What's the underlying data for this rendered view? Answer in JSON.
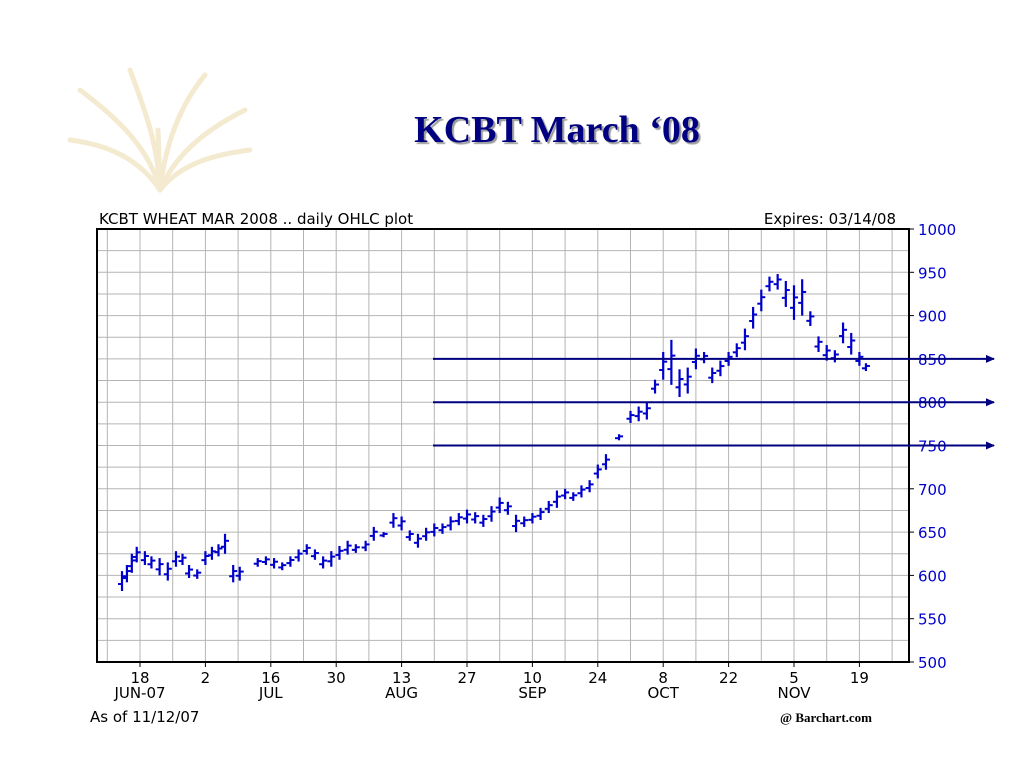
{
  "slide": {
    "title": "KCBT March ‘08"
  },
  "chart_header": {
    "left": "KCBT WHEAT MAR 2008 .. daily OHLC plot",
    "right": "Expires: 03/14/08"
  },
  "footer": {
    "as_of": "As of 11/12/07",
    "credit": "@ Barchart.com"
  },
  "colors": {
    "bars": "#0000cc",
    "lines": "#000080",
    "title": "#000080",
    "grid": "#b4b4b4"
  },
  "chart_data": {
    "type": "ohlc",
    "title": "KCBT WHEAT MAR 2008 .. daily OHLC plot",
    "ylim": [
      500,
      1000
    ],
    "y_ticks": [
      1000,
      950,
      900,
      850,
      800,
      750,
      700,
      650,
      600,
      550,
      500
    ],
    "x_ticks": [
      {
        "day": "18",
        "month": "JUN-07"
      },
      {
        "day": "2",
        "month": ""
      },
      {
        "day": "16",
        "month": "JUL"
      },
      {
        "day": "30",
        "month": ""
      },
      {
        "day": "13",
        "month": "AUG"
      },
      {
        "day": "27",
        "month": ""
      },
      {
        "day": "10",
        "month": "SEP"
      },
      {
        "day": "24",
        "month": ""
      },
      {
        "day": "8",
        "month": "OCT"
      },
      {
        "day": "22",
        "month": ""
      },
      {
        "day": "5",
        "month": "NOV"
      },
      {
        "day": "19",
        "month": ""
      }
    ],
    "x_index": "weeks from 2007-06-18 (tick every 2 weeks)",
    "x_range": [
      -0.7,
      22.2
    ],
    "bars": [
      {
        "x": -0.55,
        "h": 605,
        "l": 582
      },
      {
        "x": -0.4,
        "h": 612,
        "l": 592
      },
      {
        "x": -0.25,
        "h": 625,
        "l": 603
      },
      {
        "x": -0.1,
        "h": 633,
        "l": 615
      },
      {
        "x": 0.15,
        "h": 628,
        "l": 612
      },
      {
        "x": 0.35,
        "h": 622,
        "l": 608
      },
      {
        "x": 0.6,
        "h": 620,
        "l": 600
      },
      {
        "x": 0.85,
        "h": 615,
        "l": 594
      },
      {
        "x": 1.1,
        "h": 628,
        "l": 610
      },
      {
        "x": 1.3,
        "h": 625,
        "l": 612
      },
      {
        "x": 1.5,
        "h": 612,
        "l": 597
      },
      {
        "x": 1.75,
        "h": 607,
        "l": 596
      },
      {
        "x": 2.0,
        "h": 628,
        "l": 612
      },
      {
        "x": 2.2,
        "h": 633,
        "l": 618
      },
      {
        "x": 2.4,
        "h": 636,
        "l": 622
      },
      {
        "x": 2.6,
        "h": 648,
        "l": 625
      },
      {
        "x": 2.85,
        "h": 612,
        "l": 592
      },
      {
        "x": 3.05,
        "h": 610,
        "l": 594
      },
      {
        "x": 3.6,
        "h": 620,
        "l": 610
      },
      {
        "x": 3.85,
        "h": 622,
        "l": 612
      },
      {
        "x": 4.1,
        "h": 620,
        "l": 608
      },
      {
        "x": 4.35,
        "h": 615,
        "l": 606
      },
      {
        "x": 4.6,
        "h": 622,
        "l": 610
      },
      {
        "x": 4.85,
        "h": 630,
        "l": 616
      },
      {
        "x": 5.1,
        "h": 636,
        "l": 624
      },
      {
        "x": 5.35,
        "h": 630,
        "l": 618
      },
      {
        "x": 5.6,
        "h": 622,
        "l": 608
      },
      {
        "x": 5.85,
        "h": 628,
        "l": 610
      },
      {
        "x": 6.1,
        "h": 634,
        "l": 618
      },
      {
        "x": 6.35,
        "h": 640,
        "l": 624
      },
      {
        "x": 6.6,
        "h": 636,
        "l": 626
      },
      {
        "x": 6.9,
        "h": 640,
        "l": 628
      },
      {
        "x": 7.15,
        "h": 656,
        "l": 640
      },
      {
        "x": 7.45,
        "h": 650,
        "l": 644
      },
      {
        "x": 7.75,
        "h": 672,
        "l": 655
      },
      {
        "x": 8.0,
        "h": 668,
        "l": 652
      },
      {
        "x": 8.25,
        "h": 652,
        "l": 640
      },
      {
        "x": 8.5,
        "h": 648,
        "l": 632
      },
      {
        "x": 8.75,
        "h": 655,
        "l": 640
      },
      {
        "x": 9.0,
        "h": 660,
        "l": 645
      },
      {
        "x": 9.25,
        "h": 660,
        "l": 648
      },
      {
        "x": 9.5,
        "h": 668,
        "l": 652
      },
      {
        "x": 9.75,
        "h": 672,
        "l": 658
      },
      {
        "x": 10.0,
        "h": 676,
        "l": 660
      },
      {
        "x": 10.25,
        "h": 673,
        "l": 660
      },
      {
        "x": 10.5,
        "h": 670,
        "l": 656
      },
      {
        "x": 10.75,
        "h": 680,
        "l": 662
      },
      {
        "x": 11.0,
        "h": 690,
        "l": 672
      },
      {
        "x": 11.25,
        "h": 685,
        "l": 670
      },
      {
        "x": 11.5,
        "h": 670,
        "l": 650
      },
      {
        "x": 11.75,
        "h": 668,
        "l": 656
      },
      {
        "x": 12.0,
        "h": 672,
        "l": 660
      },
      {
        "x": 12.25,
        "h": 678,
        "l": 664
      },
      {
        "x": 12.5,
        "h": 686,
        "l": 672
      },
      {
        "x": 12.75,
        "h": 698,
        "l": 678
      },
      {
        "x": 13.0,
        "h": 700,
        "l": 688
      },
      {
        "x": 13.25,
        "h": 696,
        "l": 686
      },
      {
        "x": 13.5,
        "h": 704,
        "l": 690
      },
      {
        "x": 13.75,
        "h": 710,
        "l": 696
      },
      {
        "x": 14.0,
        "h": 728,
        "l": 712
      },
      {
        "x": 14.25,
        "h": 740,
        "l": 722
      },
      {
        "x": 14.65,
        "h": 763,
        "l": 756
      },
      {
        "x": 15.0,
        "h": 790,
        "l": 776
      },
      {
        "x": 15.25,
        "h": 795,
        "l": 778
      },
      {
        "x": 15.5,
        "h": 800,
        "l": 780
      },
      {
        "x": 15.75,
        "h": 826,
        "l": 810
      },
      {
        "x": 16.0,
        "h": 858,
        "l": 826
      },
      {
        "x": 16.25,
        "h": 872,
        "l": 820
      },
      {
        "x": 16.5,
        "h": 838,
        "l": 806
      },
      {
        "x": 16.75,
        "h": 840,
        "l": 810
      },
      {
        "x": 17.0,
        "h": 862,
        "l": 838
      },
      {
        "x": 17.25,
        "h": 858,
        "l": 845
      },
      {
        "x": 17.5,
        "h": 840,
        "l": 822
      },
      {
        "x": 17.75,
        "h": 848,
        "l": 830
      },
      {
        "x": 18.0,
        "h": 858,
        "l": 842
      },
      {
        "x": 18.25,
        "h": 868,
        "l": 852
      },
      {
        "x": 18.5,
        "h": 885,
        "l": 860
      },
      {
        "x": 18.75,
        "h": 910,
        "l": 885
      },
      {
        "x": 19.0,
        "h": 930,
        "l": 905
      },
      {
        "x": 19.25,
        "h": 945,
        "l": 928
      },
      {
        "x": 19.5,
        "h": 948,
        "l": 930
      },
      {
        "x": 19.75,
        "h": 940,
        "l": 910
      },
      {
        "x": 20.0,
        "h": 935,
        "l": 895
      },
      {
        "x": 20.25,
        "h": 942,
        "l": 900
      },
      {
        "x": 20.5,
        "h": 905,
        "l": 888
      },
      {
        "x": 20.75,
        "h": 876,
        "l": 858
      },
      {
        "x": 21.0,
        "h": 866,
        "l": 848
      },
      {
        "x": 21.25,
        "h": 860,
        "l": 846
      },
      {
        "x": 21.5,
        "h": 892,
        "l": 868
      },
      {
        "x": 21.75,
        "h": 880,
        "l": 855
      },
      {
        "x": 22.0,
        "h": 858,
        "l": 842
      },
      {
        "x": 22.2,
        "h": 845,
        "l": 836
      }
    ],
    "horizontal_lines": [
      850,
      800,
      750
    ]
  }
}
